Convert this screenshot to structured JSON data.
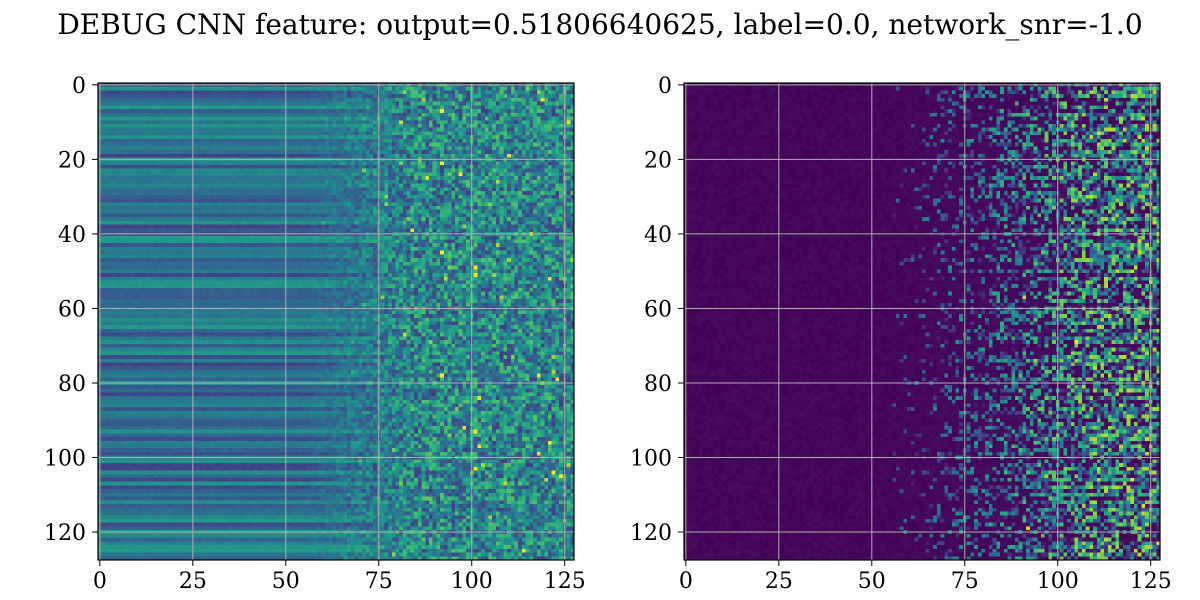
{
  "chart_data": {
    "title": "DEBUG CNN feature: output=0.51806640625, label=0.0, network_snr=-1.0",
    "panels": [
      {
        "type": "heatmap",
        "colormap": "viridis",
        "xlim": [
          -0.5,
          127.5
        ],
        "ylim": [
          127.5,
          -0.5
        ],
        "y_inverted": true,
        "grid": true,
        "xticks": [
          0,
          25,
          50,
          75,
          100,
          125
        ],
        "yticks": [
          0,
          20,
          40,
          60,
          80,
          100,
          120
        ],
        "shape": [
          128,
          128
        ],
        "pattern": "horizontal bands for columns 0-60, noisy medium-to-high values for columns 75-127",
        "value_range": [
          0,
          1
        ]
      },
      {
        "type": "heatmap",
        "colormap": "viridis",
        "xlim": [
          -0.5,
          127.5
        ],
        "ylim": [
          127.5,
          -0.5
        ],
        "y_inverted": true,
        "grid": true,
        "xticks": [
          0,
          25,
          50,
          75,
          100,
          125
        ],
        "yticks": [
          0,
          20,
          40,
          60,
          80,
          100,
          120
        ],
        "shape": [
          128,
          128
        ],
        "pattern": "mostly near-zero for columns 0-60, sparse noisy activations increasing toward columns 100-127",
        "value_range": [
          0,
          1
        ]
      }
    ]
  }
}
